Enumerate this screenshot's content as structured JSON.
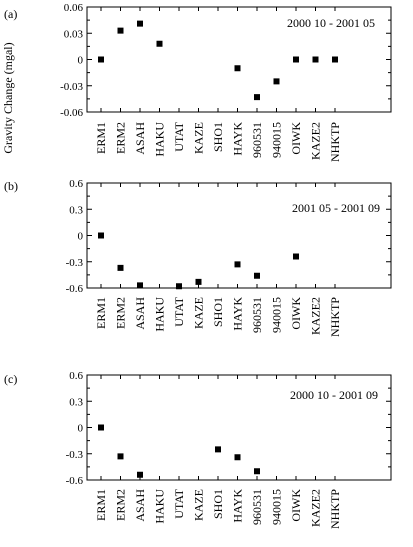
{
  "y_axis_label": "Gravity Change (mgal)",
  "chart_data": [
    {
      "type": "scatter",
      "panel_label": "(a)",
      "period": "2000 10 - 2001 05",
      "categories": [
        "ERM1",
        "ERM2",
        "ASAH",
        "HAKU",
        "UTAT",
        "KAZE",
        "SHO1",
        "HAYK",
        "960531",
        "940015",
        "OIWK",
        "KAZE2",
        "NHKTP"
      ],
      "ytick_labels": [
        "0.06",
        "0.03",
        "0",
        "-0.03",
        "-0.06"
      ],
      "ylim": [
        -0.06,
        0.06
      ],
      "yticks": [
        0.06,
        0.03,
        0,
        -0.03,
        -0.06
      ],
      "points": [
        {
          "x": "ERM1",
          "y": 0.0
        },
        {
          "x": "ERM2",
          "y": 0.033
        },
        {
          "x": "ASAH",
          "y": 0.041
        },
        {
          "x": "HAKU",
          "y": 0.018
        },
        {
          "x": "HAYK",
          "y": -0.01
        },
        {
          "x": "960531",
          "y": -0.043
        },
        {
          "x": "940015",
          "y": -0.025
        },
        {
          "x": "OIWK",
          "y": 0.0
        },
        {
          "x": "KAZE2",
          "y": 0.0
        },
        {
          "x": "NHKTP",
          "y": 0.0
        }
      ]
    },
    {
      "type": "scatter",
      "panel_label": "(b)",
      "period": "2001 05 - 2001 09",
      "categories": [
        "ERM1",
        "ERM2",
        "ASAH",
        "HAKU",
        "UTAT",
        "KAZE",
        "SHO1",
        "HAYK",
        "960531",
        "940015",
        "OIWK",
        "KAZE2",
        "NHKTP"
      ],
      "ytick_labels": [
        "0.6",
        "0.3",
        "0",
        "-0.3",
        "-0.6"
      ],
      "ylim": [
        -0.6,
        0.6
      ],
      "yticks": [
        0.6,
        0.3,
        0,
        -0.3,
        -0.6
      ],
      "points": [
        {
          "x": "ERM1",
          "y": 0.0
        },
        {
          "x": "ERM2",
          "y": -0.37
        },
        {
          "x": "ASAH",
          "y": -0.57
        },
        {
          "x": "UTAT",
          "y": -0.58
        },
        {
          "x": "KAZE",
          "y": -0.53
        },
        {
          "x": "HAYK",
          "y": -0.33
        },
        {
          "x": "960531",
          "y": -0.46
        },
        {
          "x": "OIWK",
          "y": -0.24
        }
      ]
    },
    {
      "type": "scatter",
      "panel_label": "(c)",
      "period": "2000 10 - 2001 09",
      "categories": [
        "ERM1",
        "ERM2",
        "ASAH",
        "HAKU",
        "UTAT",
        "KAZE",
        "SHO1",
        "HAYK",
        "960531",
        "940015",
        "OIWK",
        "KAZE2",
        "NHKTP"
      ],
      "ytick_labels": [
        "0.6",
        "0.3",
        "0",
        "-0.3",
        "-0.6"
      ],
      "ylim": [
        -0.6,
        0.6
      ],
      "yticks": [
        0.6,
        0.3,
        0,
        -0.3,
        -0.6
      ],
      "points": [
        {
          "x": "ERM1",
          "y": 0.0
        },
        {
          "x": "ERM2",
          "y": -0.33
        },
        {
          "x": "ASAH",
          "y": -0.54
        },
        {
          "x": "SHO1",
          "y": -0.25
        },
        {
          "x": "HAYK",
          "y": -0.34
        },
        {
          "x": "960531",
          "y": -0.5
        }
      ]
    }
  ]
}
